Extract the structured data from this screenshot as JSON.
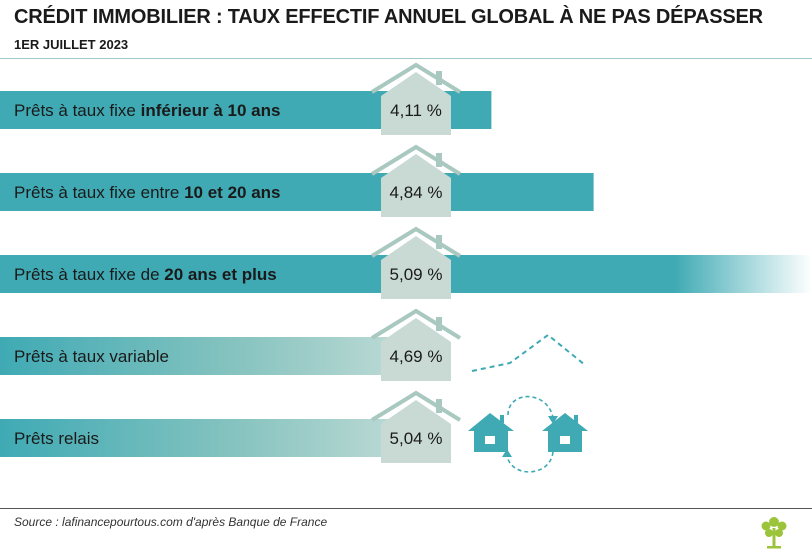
{
  "header": {
    "title": "CRÉDIT IMMOBILIER : TAUX EFFECTIF ANNUEL GLOBAL À NE PAS DÉPASSER",
    "subtitle": "1ER JUILLET 2023"
  },
  "footer": {
    "source": "Source : lafinancepourtous.com d'après Banque de France"
  },
  "colors": {
    "bar_teal": "#3faab4",
    "house_gray": "#c9dad4",
    "house_outline": "#a8c8c0",
    "text": "#1a1a1a",
    "logo_green": "#9cc43b"
  },
  "chart_data": {
    "type": "bar",
    "unit": "%",
    "rows": [
      {
        "label_normal": "Prêts à taux fixe ",
        "label_bold": "inférieur à 10 ans",
        "value": 4.11,
        "value_text": "4,11 %",
        "style": "solid"
      },
      {
        "label_normal": "Prêts à taux fixe entre ",
        "label_bold": "10 et 20 ans",
        "value": 4.84,
        "value_text": "4,84 %",
        "style": "solid"
      },
      {
        "label_normal": "Prêts à taux fixe de ",
        "label_bold": "20 ans et plus",
        "value": 5.09,
        "value_text": "5,09 %",
        "style": "fade-right"
      },
      {
        "label_normal": "Prêts à taux variable",
        "label_bold": "",
        "value": 4.69,
        "value_text": "4,69 %",
        "style": "fade"
      },
      {
        "label_normal": "Prêts relais",
        "label_bold": "",
        "value": 5.04,
        "value_text": "5,04 %",
        "style": "fade"
      }
    ]
  },
  "icons": [
    "house-icon",
    "variable-rate-icon",
    "bridge-loan-houses-icon",
    "tree-logo-icon"
  ]
}
